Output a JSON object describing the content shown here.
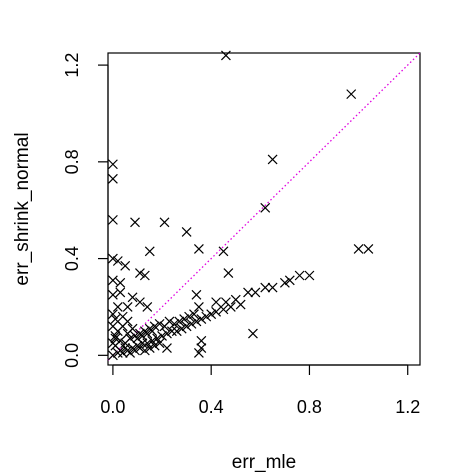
{
  "chart_data": {
    "type": "scatter",
    "xlabel": "err_mle",
    "ylabel": "err_shrink_normal",
    "xlim": [
      -0.02,
      1.25
    ],
    "ylim": [
      -0.04,
      1.25
    ],
    "x_ticks": [
      0.0,
      0.4,
      0.8,
      1.2
    ],
    "y_ticks": [
      0.0,
      0.4,
      0.8,
      1.2
    ],
    "x_tick_labels": [
      "0.0",
      "0.4",
      "0.8",
      "1.2"
    ],
    "y_tick_labels": [
      "0.0",
      "0.4",
      "0.8",
      "1.2"
    ],
    "marker": "x",
    "grid": false,
    "reference_line": {
      "slope": 1,
      "intercept": 0,
      "style": "dotted",
      "color": "#e000e0"
    },
    "points": [
      [
        0.46,
        1.24
      ],
      [
        0.97,
        1.08
      ],
      [
        0.65,
        0.81
      ],
      [
        0.0,
        0.79
      ],
      [
        0.0,
        0.73
      ],
      [
        0.62,
        0.61
      ],
      [
        0.0,
        0.56
      ],
      [
        0.09,
        0.55
      ],
      [
        0.21,
        0.55
      ],
      [
        0.3,
        0.51
      ],
      [
        0.45,
        0.43
      ],
      [
        0.35,
        0.44
      ],
      [
        0.15,
        0.43
      ],
      [
        1.0,
        0.44
      ],
      [
        1.04,
        0.44
      ],
      [
        0.0,
        0.4
      ],
      [
        0.02,
        0.39
      ],
      [
        0.05,
        0.37
      ],
      [
        0.11,
        0.34
      ],
      [
        0.13,
        0.33
      ],
      [
        0.47,
        0.34
      ],
      [
        0.0,
        0.31
      ],
      [
        0.03,
        0.3
      ],
      [
        0.0,
        0.25
      ],
      [
        0.03,
        0.26
      ],
      [
        0.08,
        0.24
      ],
      [
        0.11,
        0.22
      ],
      [
        0.14,
        0.2
      ],
      [
        0.06,
        0.2
      ],
      [
        0.0,
        0.17
      ],
      [
        0.34,
        0.25
      ],
      [
        0.35,
        0.2
      ],
      [
        0.42,
        0.22
      ],
      [
        0.46,
        0.22
      ],
      [
        0.5,
        0.23
      ],
      [
        0.55,
        0.26
      ],
      [
        0.58,
        0.26
      ],
      [
        0.62,
        0.28
      ],
      [
        0.65,
        0.28
      ],
      [
        0.7,
        0.3
      ],
      [
        0.72,
        0.31
      ],
      [
        0.76,
        0.33
      ],
      [
        0.8,
        0.33
      ],
      [
        0.57,
        0.09
      ],
      [
        0.36,
        0.06
      ],
      [
        0.36,
        0.03
      ],
      [
        0.22,
        0.03
      ],
      [
        0.35,
        0.01
      ],
      [
        0.0,
        0.0
      ],
      [
        0.02,
        0.01
      ],
      [
        0.04,
        0.01
      ],
      [
        0.06,
        0.02
      ],
      [
        0.08,
        0.03
      ],
      [
        0.1,
        0.04
      ],
      [
        0.12,
        0.05
      ],
      [
        0.14,
        0.05
      ],
      [
        0.16,
        0.06
      ],
      [
        0.18,
        0.07
      ],
      [
        0.2,
        0.08
      ],
      [
        0.22,
        0.09
      ],
      [
        0.24,
        0.1
      ],
      [
        0.26,
        0.1
      ],
      [
        0.28,
        0.11
      ],
      [
        0.3,
        0.12
      ],
      [
        0.32,
        0.13
      ],
      [
        0.34,
        0.14
      ],
      [
        0.36,
        0.15
      ],
      [
        0.38,
        0.16
      ],
      [
        0.4,
        0.17
      ],
      [
        0.42,
        0.18
      ],
      [
        0.45,
        0.19
      ],
      [
        0.48,
        0.2
      ],
      [
        0.52,
        0.21
      ],
      [
        0.01,
        0.04
      ],
      [
        0.03,
        0.06
      ],
      [
        0.05,
        0.05
      ],
      [
        0.07,
        0.07
      ],
      [
        0.09,
        0.08
      ],
      [
        0.11,
        0.09
      ],
      [
        0.13,
        0.1
      ],
      [
        0.15,
        0.11
      ],
      [
        0.17,
        0.12
      ],
      [
        0.19,
        0.13
      ],
      [
        0.21,
        0.12
      ],
      [
        0.23,
        0.14
      ],
      [
        0.25,
        0.13
      ],
      [
        0.01,
        0.08
      ],
      [
        0.02,
        0.1
      ],
      [
        0.04,
        0.12
      ],
      [
        0.06,
        0.14
      ],
      [
        0.0,
        0.12
      ],
      [
        0.01,
        0.15
      ],
      [
        0.03,
        0.02
      ],
      [
        0.05,
        0.03
      ],
      [
        0.07,
        0.01
      ],
      [
        0.09,
        0.02
      ],
      [
        0.11,
        0.03
      ],
      [
        0.13,
        0.02
      ],
      [
        0.15,
        0.03
      ],
      [
        0.17,
        0.04
      ],
      [
        0.19,
        0.05
      ],
      [
        0.1,
        0.07
      ],
      [
        0.12,
        0.08
      ],
      [
        0.14,
        0.09
      ],
      [
        0.16,
        0.1
      ],
      [
        0.27,
        0.14
      ],
      [
        0.29,
        0.15
      ],
      [
        0.31,
        0.16
      ],
      [
        0.33,
        0.17
      ],
      [
        0.02,
        0.2
      ],
      [
        0.04,
        0.16
      ],
      [
        0.08,
        0.11
      ],
      [
        0.06,
        0.09
      ],
      [
        0.0,
        0.05
      ],
      [
        0.01,
        0.07
      ]
    ]
  }
}
